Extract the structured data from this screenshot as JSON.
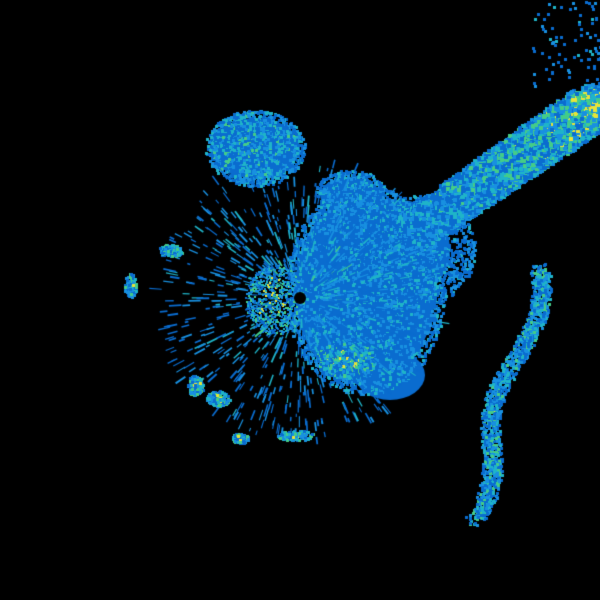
{
  "image": {
    "kind": "radar-reflectivity-sweep",
    "background_color": "#000000",
    "palette": {
      "blue": "#0a6ccf",
      "light_blue": "#1890e0",
      "cyan": "#1fb4c8",
      "green": "#44cc88",
      "yellow": "#e6e43a",
      "orange": "#f09020"
    }
  }
}
